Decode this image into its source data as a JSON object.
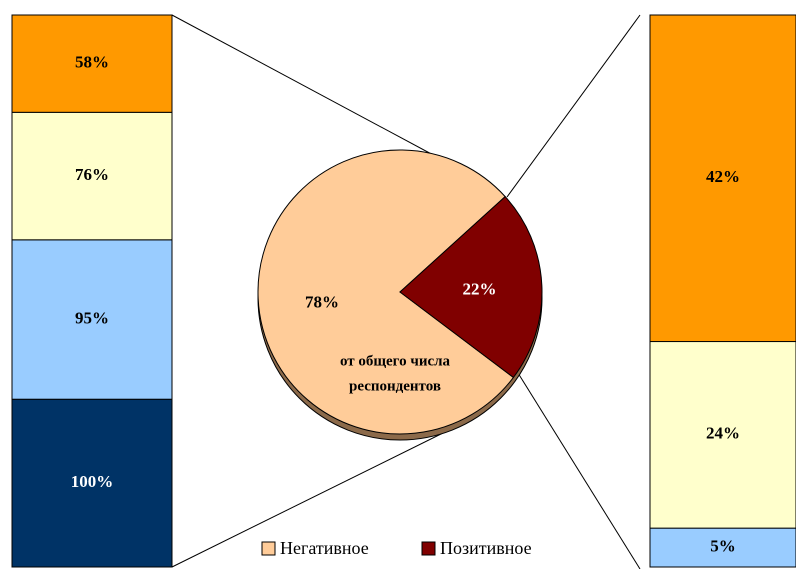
{
  "chart_data": [
    {
      "type": "stacked_bar",
      "values": [
        100,
        95,
        76,
        58
      ],
      "value_labels": [
        "100%",
        "95%",
        "76%",
        "58%"
      ],
      "colors": [
        "#003366",
        "#99ccff",
        "#ffffcc",
        "#ff9900"
      ]
    },
    {
      "type": "pie",
      "categories": [
        "Негативное",
        "Позитивное"
      ],
      "values": [
        78,
        22
      ],
      "value_labels": [
        "78%",
        "22%"
      ],
      "colors": [
        "#ffcc99",
        "#800000"
      ],
      "annotation": [
        "от общего числа",
        "респондентов"
      ],
      "legend": "bottom"
    },
    {
      "type": "stacked_bar",
      "values": [
        5,
        24,
        42
      ],
      "value_labels": [
        "5%",
        "24%",
        "42%"
      ],
      "colors": [
        "#99ccff",
        "#ffffcc",
        "#ff9900"
      ]
    }
  ]
}
